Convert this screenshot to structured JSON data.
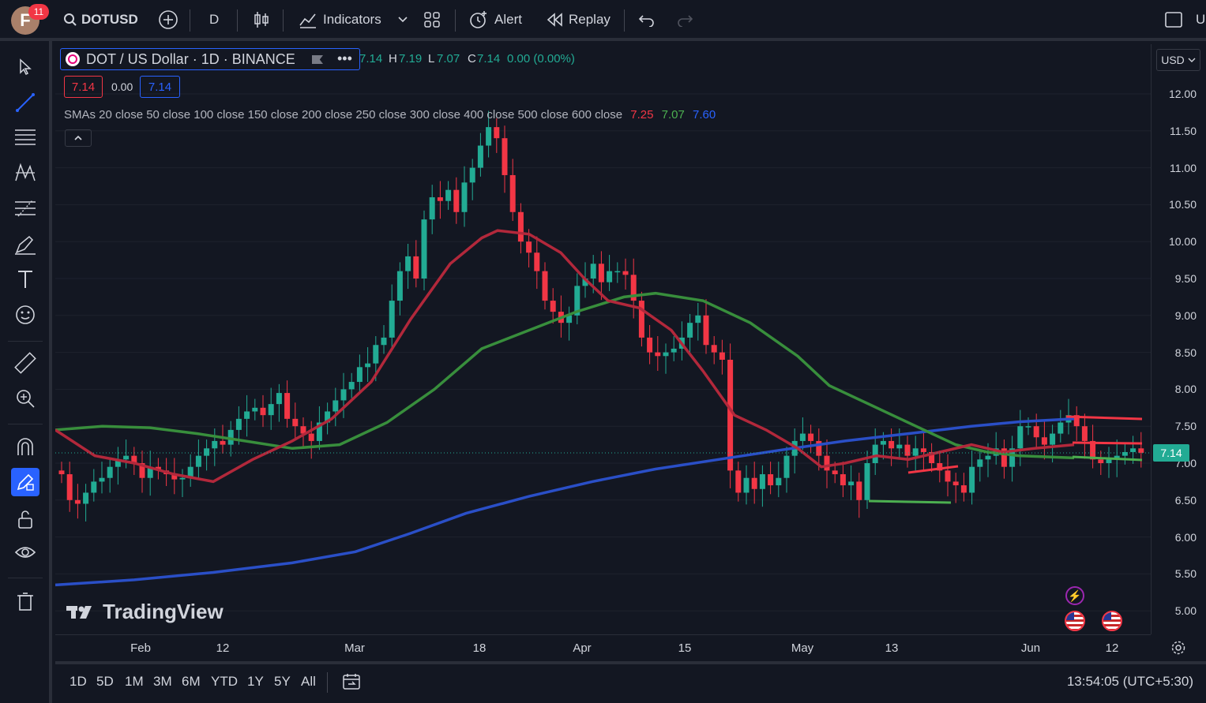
{
  "topbar": {
    "avatar_letter": "F",
    "notif_count": "11",
    "symbol": "DOTUSD",
    "interval": "D",
    "indicators_label": "Indicators",
    "alert_label": "Alert",
    "replay_label": "Replay",
    "cut_label": "U"
  },
  "legend": {
    "title": "DOT / US Dollar · 1D · BINANCE",
    "o": "7.14",
    "h_label": "H",
    "h": "7.19",
    "l_label": "L",
    "l": "7.07",
    "c_label": "C",
    "c": "7.14",
    "change": "0.00 (0.00%)",
    "bid": "7.14",
    "spread": "0.00",
    "ask": "7.14",
    "sma_text": "SMAs 20 close 50 close 100 close 150 close 200 close 250 close 300 close 400 close 500 close 600 close",
    "sma_v1": "7.25",
    "sma_v2": "7.07",
    "sma_v3": "7.60"
  },
  "price_axis": {
    "currency": "USD",
    "labels": [
      "12.00",
      "11.50",
      "11.00",
      "10.50",
      "10.00",
      "9.50",
      "9.00",
      "8.50",
      "8.00",
      "7.50",
      "7.00",
      "6.50",
      "6.00",
      "5.50",
      "5.00"
    ],
    "last_price": "7.14"
  },
  "time_axis": [
    "Feb",
    "12",
    "Mar",
    "18",
    "Apr",
    "15",
    "May",
    "13",
    "Jun",
    "12"
  ],
  "ranges": [
    "1D",
    "5D",
    "1M",
    "3M",
    "6M",
    "YTD",
    "1Y",
    "5Y",
    "All"
  ],
  "clock": "13:54:05 (UTC+5:30)",
  "watermark": "TradingView",
  "colors": {
    "up": "#22ab94",
    "down": "#f23645",
    "sma20": "#b2283b",
    "sma50": "#388e3c",
    "sma200": "#2a4fc7",
    "accent": "#2962ff"
  }
}
